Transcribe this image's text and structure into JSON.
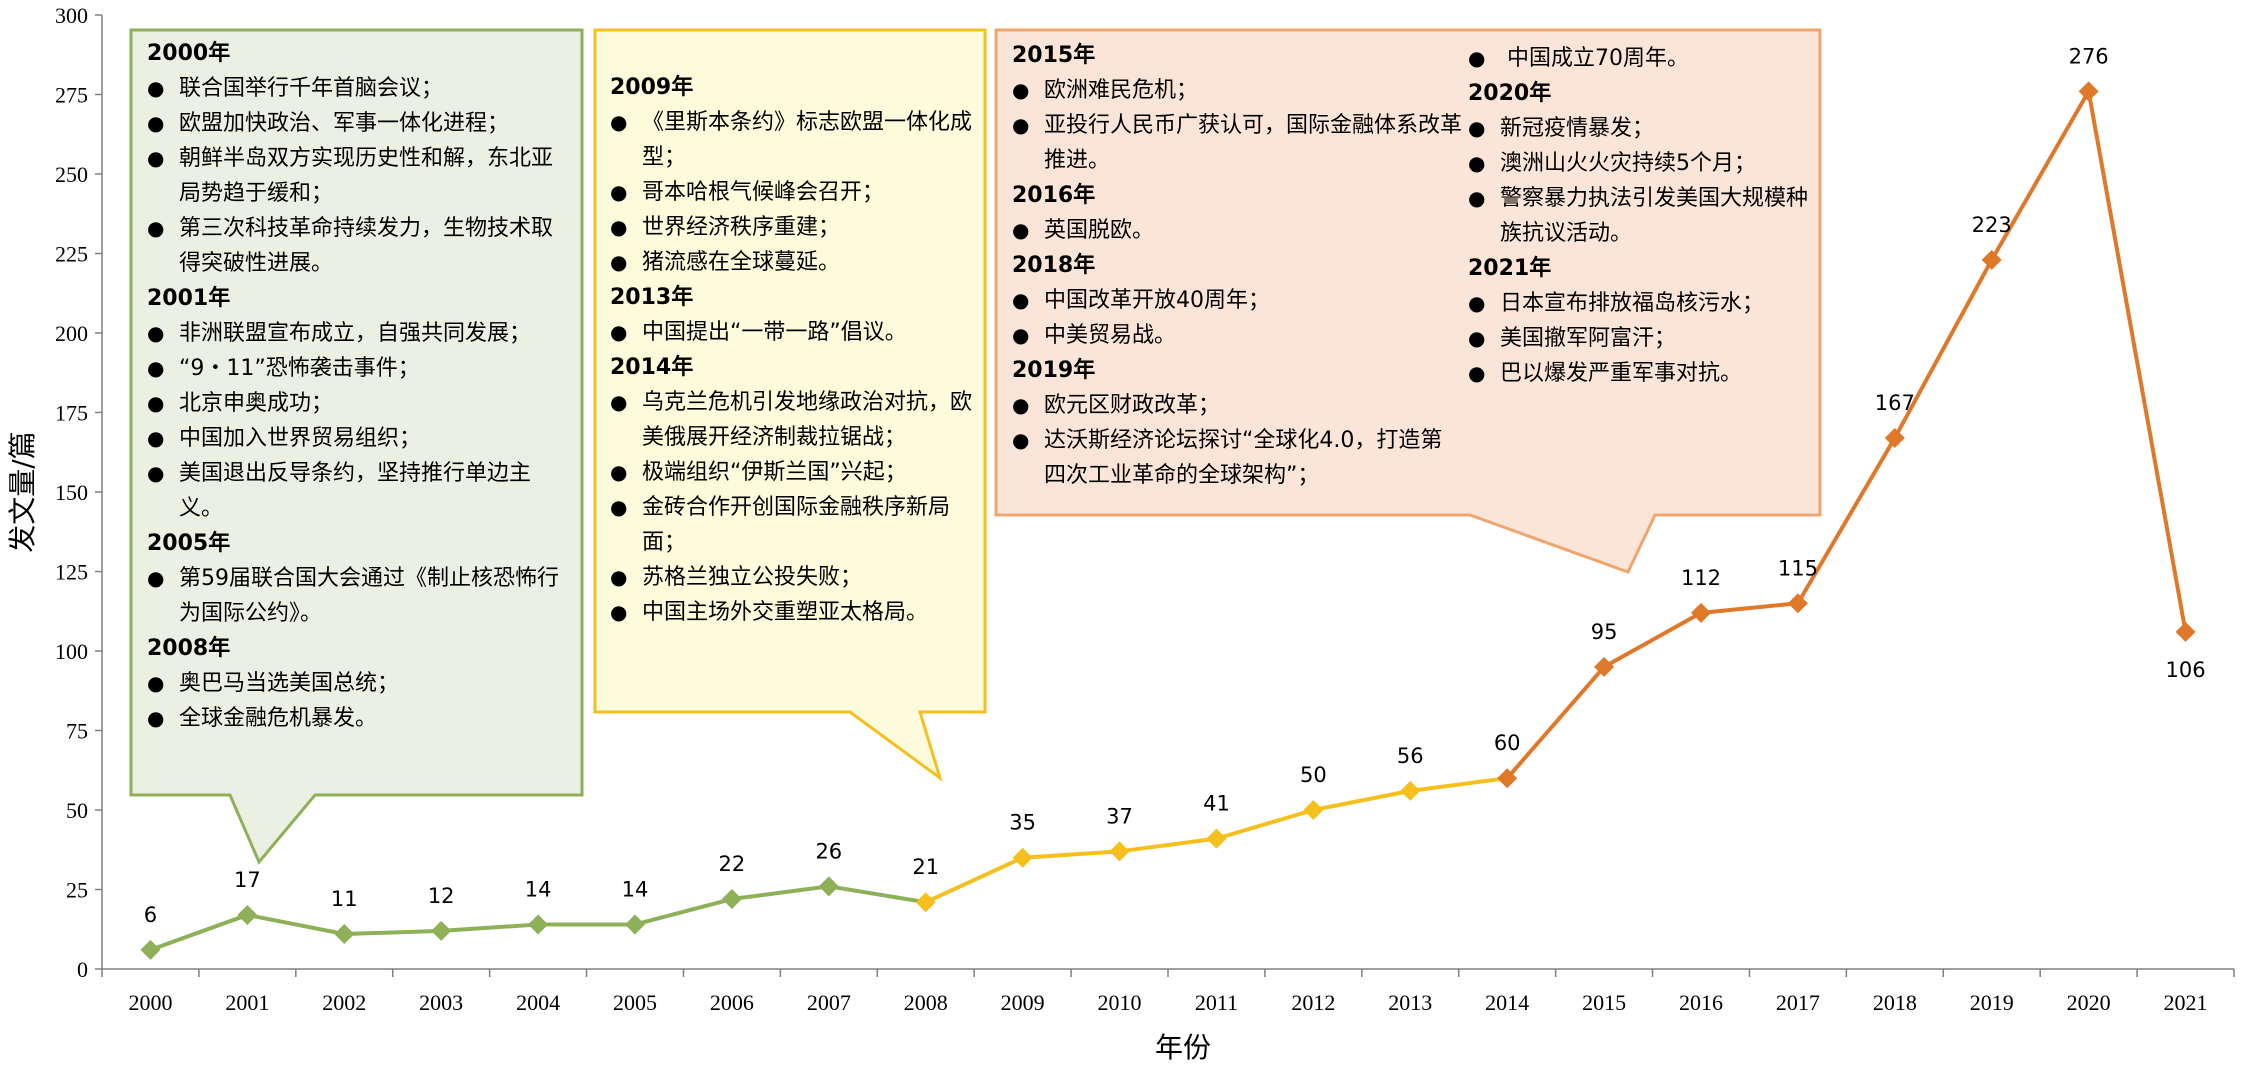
{
  "chart_data": {
    "type": "line",
    "xlabel": "年份",
    "ylabel": "发文量/篇",
    "ylim": [
      0,
      300
    ],
    "yticks": [
      0,
      25,
      50,
      75,
      100,
      125,
      150,
      175,
      200,
      225,
      250,
      275,
      300
    ],
    "categories": [
      "2000",
      "2001",
      "2002",
      "2003",
      "2004",
      "2005",
      "2006",
      "2007",
      "2008",
      "2009",
      "2010",
      "2011",
      "2012",
      "2013",
      "2014",
      "2015",
      "2016",
      "2017",
      "2018",
      "2019",
      "2020",
      "2021"
    ],
    "values": [
      6,
      17,
      11,
      12,
      14,
      14,
      22,
      26,
      21,
      35,
      37,
      41,
      50,
      56,
      60,
      95,
      112,
      115,
      167,
      223,
      276,
      106
    ],
    "data_labels": [
      "6",
      "17",
      "11",
      "12",
      "14",
      "14",
      "22",
      "26",
      "21",
      "35",
      "37",
      "41",
      "50",
      "56",
      "60",
      "95",
      "112",
      "115",
      "167",
      "223",
      "276",
      "106"
    ],
    "segments": [
      {
        "from": "2000",
        "to": "2008",
        "color": "#8db058"
      },
      {
        "from": "2008",
        "to": "2014",
        "color": "#f5c01e"
      },
      {
        "from": "2014",
        "to": "2021",
        "color": "#e0782a"
      }
    ],
    "grid": false
  },
  "colors": {
    "green_fill": "#ecf0e3",
    "green_border": "#8db058",
    "yellow_fill": "#fcfbdc",
    "yellow_border": "#f5c01e",
    "orange_fill": "#fbe5d8",
    "orange_border": "#eea66e"
  },
  "callouts": {
    "green": [
      {
        "k": "year",
        "t": "2000年"
      },
      {
        "k": "item",
        "t": "联合国举行千年首脑会议；"
      },
      {
        "k": "item",
        "t": "欧盟加快政治、军事一体化进程；"
      },
      {
        "k": "item",
        "t": "朝鲜半岛双方实现历史性和解，东北亚局势趋于缓和；"
      },
      {
        "k": "item",
        "t": "第三次科技革命持续发力，生物技术取得突破性进展。"
      },
      {
        "k": "year",
        "t": "2001年"
      },
      {
        "k": "item",
        "t": "非洲联盟宣布成立，自强共同发展；"
      },
      {
        "k": "item",
        "t": "“9・11”恐怖袭击事件；"
      },
      {
        "k": "item",
        "t": "北京申奥成功；"
      },
      {
        "k": "item",
        "t": "中国加入世界贸易组织；"
      },
      {
        "k": "item",
        "t": "美国退出反导条约，坚持推行单边主义。"
      },
      {
        "k": "year",
        "t": "2005年"
      },
      {
        "k": "item",
        "t": "第59届联合国大会通过《制止核恐怖行为国际公约》。"
      },
      {
        "k": "year",
        "t": "2008年"
      },
      {
        "k": "item",
        "t": "奥巴马当选美国总统；"
      },
      {
        "k": "item",
        "t": "全球金融危机暴发。"
      }
    ],
    "yellow": [
      {
        "k": "year",
        "t": "2009年"
      },
      {
        "k": "item",
        "t": "《里斯本条约》标志欧盟一体化成型；"
      },
      {
        "k": "item",
        "t": "哥本哈根气候峰会召开；"
      },
      {
        "k": "item",
        "t": "世界经济秩序重建；"
      },
      {
        "k": "item",
        "t": "猪流感在全球蔓延。"
      },
      {
        "k": "year",
        "t": "2013年"
      },
      {
        "k": "item",
        "t": "中国提出“一带一路”倡议。"
      },
      {
        "k": "year",
        "t": "2014年"
      },
      {
        "k": "item",
        "t": "乌克兰危机引发地缘政治对抗，欧美俄展开经济制裁拉锯战；"
      },
      {
        "k": "item",
        "t": "极端组织“伊斯兰国”兴起；"
      },
      {
        "k": "item",
        "t": "金砖合作开创国际金融秩序新局面；"
      },
      {
        "k": "item",
        "t": "苏格兰独立公投失败；"
      },
      {
        "k": "item",
        "t": "中国主场外交重塑亚太格局。"
      }
    ],
    "orange_left": [
      {
        "k": "year",
        "t": "2015年"
      },
      {
        "k": "item",
        "t": "欧洲难民危机；"
      },
      {
        "k": "item",
        "t": "亚投行人民币广获认可，国际金融体系改革推进。"
      },
      {
        "k": "year",
        "t": "2016年"
      },
      {
        "k": "item",
        "t": "英国脱欧。"
      },
      {
        "k": "year",
        "t": "2018年"
      },
      {
        "k": "item",
        "t": "中国改革开放40周年；"
      },
      {
        "k": "item",
        "t": "中美贸易战。"
      },
      {
        "k": "year",
        "t": "2019年"
      },
      {
        "k": "item",
        "t": "欧元区财政改革；"
      },
      {
        "k": "item",
        "t": "达沃斯经济论坛探讨“全球化4.0，打造第四次工业革命的全球架构”；"
      }
    ],
    "orange_right": [
      {
        "k": "item",
        "t": "  中国成立70周年。"
      },
      {
        "k": "year",
        "t": "2020年"
      },
      {
        "k": "item",
        "t": "新冠疫情暴发；"
      },
      {
        "k": "item",
        "t": "澳洲山火火灾持续5个月；"
      },
      {
        "k": "item",
        "t": "警察暴力执法引发美国大规模种族抗议活动。"
      },
      {
        "k": "year",
        "t": "2021年"
      },
      {
        "k": "item",
        "t": "日本宣布排放福岛核污水；"
      },
      {
        "k": "item",
        "t": "美国撤军阿富汗；"
      },
      {
        "k": "item",
        "t": "巴以爆发严重军事对抗。"
      }
    ]
  }
}
